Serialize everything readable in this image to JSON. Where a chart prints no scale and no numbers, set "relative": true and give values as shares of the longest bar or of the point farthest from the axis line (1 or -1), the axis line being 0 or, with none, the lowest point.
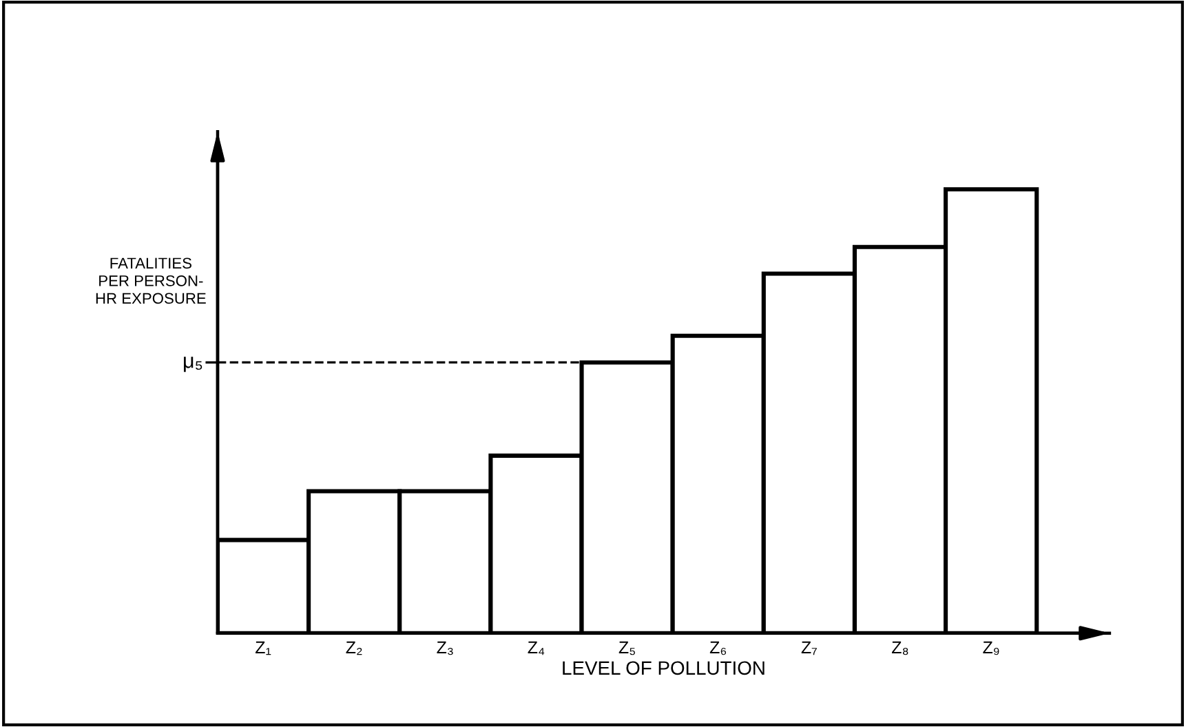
{
  "chart_data": {
    "type": "bar",
    "relative": true,
    "categories": [
      "Z₁",
      "Z₂",
      "Z₃",
      "Z₄",
      "Z₅",
      "Z₆",
      "Z₇",
      "Z₈",
      "Z₉"
    ],
    "values": [
      0.21,
      0.32,
      0.32,
      0.4,
      0.61,
      0.67,
      0.81,
      0.87,
      1.0
    ],
    "color": "#ffffff",
    "ylabel": "FATALITIES\nPER PERSON-\nHR EXPOSURE",
    "xlabel": "LEVEL OF POLLUTION",
    "ref_lines": [
      {
        "axis": "y",
        "value": 0.61,
        "label": "μ₅",
        "line_style": "dashed",
        "color": "#000000"
      }
    ],
    "grid": false
  }
}
